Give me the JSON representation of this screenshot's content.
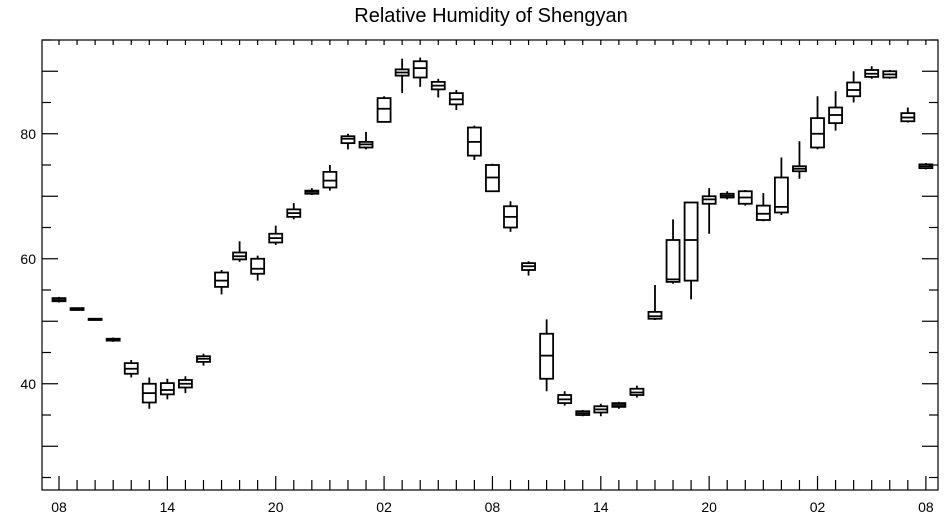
{
  "chart_data": {
    "type": "boxplot",
    "title": "Relative Humidity of Shengyan",
    "xlabel": "",
    "ylabel": "",
    "ylim": [
      23,
      95
    ],
    "x_tick_labels": [
      "08",
      "14",
      "20",
      "02",
      "08",
      "14",
      "20",
      "02",
      "08"
    ],
    "x_tick_label_positions": [
      0,
      6,
      12,
      18,
      24,
      30,
      36,
      42,
      48
    ],
    "x_minor_ticks": 49,
    "y_tick_labels": [
      40,
      60,
      80
    ],
    "grid": false,
    "boxes": [
      {
        "x": 0,
        "whislo": 53.0,
        "q1": 53.2,
        "med": 53.4,
        "q3": 53.7,
        "whishi": 53.9
      },
      {
        "x": 1,
        "whislo": 51.7,
        "q1": 51.8,
        "med": 52.0,
        "q3": 52.1,
        "whishi": 52.2
      },
      {
        "x": 2,
        "whislo": 50.1,
        "q1": 50.2,
        "med": 50.3,
        "q3": 50.4,
        "whishi": 50.5
      },
      {
        "x": 3,
        "whislo": 46.7,
        "q1": 46.9,
        "med": 47.0,
        "q3": 47.2,
        "whishi": 47.4
      },
      {
        "x": 4,
        "whislo": 41.0,
        "q1": 41.6,
        "med": 42.4,
        "q3": 43.3,
        "whishi": 43.8
      },
      {
        "x": 5,
        "whislo": 36.0,
        "q1": 37.0,
        "med": 38.5,
        "q3": 40.0,
        "whishi": 41.0
      },
      {
        "x": 6,
        "whislo": 37.5,
        "q1": 38.3,
        "med": 39.0,
        "q3": 40.1,
        "whishi": 40.8
      },
      {
        "x": 7,
        "whislo": 38.5,
        "q1": 39.4,
        "med": 40.0,
        "q3": 40.6,
        "whishi": 41.2
      },
      {
        "x": 8,
        "whislo": 42.9,
        "q1": 43.5,
        "med": 44.0,
        "q3": 44.4,
        "whishi": 44.8
      },
      {
        "x": 9,
        "whislo": 54.3,
        "q1": 55.5,
        "med": 56.5,
        "q3": 57.8,
        "whishi": 58.2
      },
      {
        "x": 10,
        "whislo": 59.5,
        "q1": 59.9,
        "med": 60.4,
        "q3": 61.0,
        "whishi": 62.8
      },
      {
        "x": 11,
        "whislo": 56.5,
        "q1": 57.6,
        "med": 58.4,
        "q3": 60.0,
        "whishi": 60.5
      },
      {
        "x": 12,
        "whislo": 62.2,
        "q1": 62.6,
        "med": 63.3,
        "q3": 64.0,
        "whishi": 65.3
      },
      {
        "x": 13,
        "whislo": 66.3,
        "q1": 66.7,
        "med": 67.3,
        "q3": 67.9,
        "whishi": 68.9
      },
      {
        "x": 14,
        "whislo": 70.2,
        "q1": 70.4,
        "med": 70.7,
        "q3": 70.9,
        "whishi": 71.3
      },
      {
        "x": 15,
        "whislo": 70.9,
        "q1": 71.4,
        "med": 72.5,
        "q3": 73.9,
        "whishi": 75.0
      },
      {
        "x": 16,
        "whislo": 77.5,
        "q1": 78.5,
        "med": 79.2,
        "q3": 79.6,
        "whishi": 80.0
      },
      {
        "x": 17,
        "whislo": 77.5,
        "q1": 77.8,
        "med": 78.3,
        "q3": 78.7,
        "whishi": 80.3
      },
      {
        "x": 18,
        "whislo": 81.8,
        "q1": 81.9,
        "med": 84.0,
        "q3": 85.7,
        "whishi": 86.0
      },
      {
        "x": 19,
        "whislo": 86.5,
        "q1": 89.3,
        "med": 89.8,
        "q3": 90.3,
        "whishi": 92.0
      },
      {
        "x": 20,
        "whislo": 87.5,
        "q1": 89.0,
        "med": 90.5,
        "q3": 91.6,
        "whishi": 92.2
      },
      {
        "x": 21,
        "whislo": 85.8,
        "q1": 87.1,
        "med": 87.7,
        "q3": 88.3,
        "whishi": 88.8
      },
      {
        "x": 22,
        "whislo": 83.8,
        "q1": 84.7,
        "med": 85.5,
        "q3": 86.5,
        "whishi": 87.0
      },
      {
        "x": 23,
        "whislo": 75.8,
        "q1": 76.5,
        "med": 78.7,
        "q3": 81.0,
        "whishi": 81.3
      },
      {
        "x": 24,
        "whislo": 70.7,
        "q1": 70.8,
        "med": 73.0,
        "q3": 75.0,
        "whishi": 75.2
      },
      {
        "x": 25,
        "whislo": 64.3,
        "q1": 65.0,
        "med": 66.7,
        "q3": 68.4,
        "whishi": 69.2
      },
      {
        "x": 26,
        "whislo": 57.3,
        "q1": 58.2,
        "med": 58.8,
        "q3": 59.3,
        "whishi": 59.6
      },
      {
        "x": 27,
        "whislo": 38.8,
        "q1": 40.8,
        "med": 44.5,
        "q3": 48.0,
        "whishi": 50.3
      },
      {
        "x": 28,
        "whislo": 36.5,
        "q1": 36.9,
        "med": 37.5,
        "q3": 38.2,
        "whishi": 38.8
      },
      {
        "x": 29,
        "whislo": 34.8,
        "q1": 35.0,
        "med": 35.3,
        "q3": 35.6,
        "whishi": 35.8
      },
      {
        "x": 30,
        "whislo": 34.8,
        "q1": 35.4,
        "med": 35.9,
        "q3": 36.4,
        "whishi": 36.8
      },
      {
        "x": 31,
        "whislo": 36.0,
        "q1": 36.3,
        "med": 36.6,
        "q3": 36.9,
        "whishi": 37.1
      },
      {
        "x": 32,
        "whislo": 37.8,
        "q1": 38.2,
        "med": 38.6,
        "q3": 39.2,
        "whishi": 39.7
      },
      {
        "x": 33,
        "whislo": 50.2,
        "q1": 50.4,
        "med": 50.8,
        "q3": 51.5,
        "whishi": 55.8
      },
      {
        "x": 34,
        "whislo": 56.0,
        "q1": 56.3,
        "med": 56.7,
        "q3": 63.0,
        "whishi": 66.3
      },
      {
        "x": 35,
        "whislo": 53.5,
        "q1": 56.5,
        "med": 63.0,
        "q3": 69.0,
        "whishi": 69.0
      },
      {
        "x": 36,
        "whislo": 64.0,
        "q1": 68.8,
        "med": 69.5,
        "q3": 70.0,
        "whishi": 71.3
      },
      {
        "x": 37,
        "whislo": 69.5,
        "q1": 69.8,
        "med": 70.1,
        "q3": 70.4,
        "whishi": 70.8
      },
      {
        "x": 38,
        "whislo": 68.5,
        "q1": 68.8,
        "med": 69.8,
        "q3": 70.8,
        "whishi": 71.0
      },
      {
        "x": 39,
        "whislo": 66.0,
        "q1": 66.2,
        "med": 67.2,
        "q3": 68.5,
        "whishi": 70.5
      },
      {
        "x": 40,
        "whislo": 67.0,
        "q1": 67.4,
        "med": 68.3,
        "q3": 73.0,
        "whishi": 76.2
      },
      {
        "x": 41,
        "whislo": 72.8,
        "q1": 74.0,
        "med": 74.4,
        "q3": 74.8,
        "whishi": 78.8
      },
      {
        "x": 42,
        "whislo": 77.5,
        "q1": 77.8,
        "med": 80.0,
        "q3": 82.5,
        "whishi": 86.0
      },
      {
        "x": 43,
        "whislo": 80.5,
        "q1": 81.7,
        "med": 83.0,
        "q3": 84.2,
        "whishi": 86.8
      },
      {
        "x": 44,
        "whislo": 85.0,
        "q1": 86.0,
        "med": 87.0,
        "q3": 88.2,
        "whishi": 90.0
      },
      {
        "x": 45,
        "whislo": 88.8,
        "q1": 89.1,
        "med": 89.6,
        "q3": 90.2,
        "whishi": 90.8
      },
      {
        "x": 46,
        "whislo": 88.8,
        "q1": 89.0,
        "med": 89.5,
        "q3": 90.0,
        "whishi": 90.2
      },
      {
        "x": 47,
        "whislo": 81.8,
        "q1": 82.0,
        "med": 82.6,
        "q3": 83.3,
        "whishi": 84.2
      },
      {
        "x": 48,
        "whislo": 74.3,
        "q1": 74.5,
        "med": 74.8,
        "q3": 75.1,
        "whishi": 75.3
      }
    ]
  }
}
